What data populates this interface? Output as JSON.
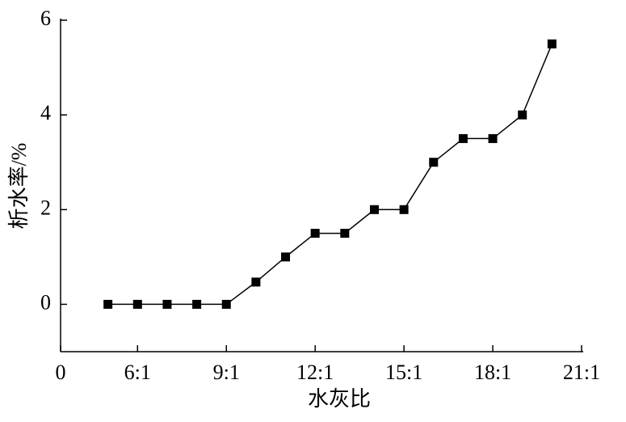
{
  "chart_data": {
    "type": "line",
    "x_label": "水灰比",
    "y_label": "析水率/%",
    "x": [
      5,
      6,
      7,
      8,
      9,
      10,
      11,
      12,
      13,
      14,
      15,
      16,
      17,
      18,
      19,
      20
    ],
    "series": [
      {
        "color": "#000000",
        "marker": "square",
        "values": [
          0,
          0,
          0,
          0,
          0,
          0.47,
          1.0,
          1.5,
          1.5,
          2.0,
          2.0,
          3.0,
          3.5,
          3.5,
          4.0,
          5.5
        ]
      }
    ],
    "xlim": [
      3.4,
      21
    ],
    "ylim": [
      -1,
      6
    ],
    "xticks": [
      {
        "value": 3.4,
        "label": "0"
      },
      {
        "value": 6,
        "label": "6:1"
      },
      {
        "value": 9,
        "label": "9:1"
      },
      {
        "value": 12,
        "label": "12:1"
      },
      {
        "value": 15,
        "label": "15:1"
      },
      {
        "value": 18,
        "label": "18:1"
      },
      {
        "value": 21,
        "label": "21:1"
      }
    ],
    "yticks": [
      0,
      2,
      4,
      6
    ],
    "grid": false
  }
}
